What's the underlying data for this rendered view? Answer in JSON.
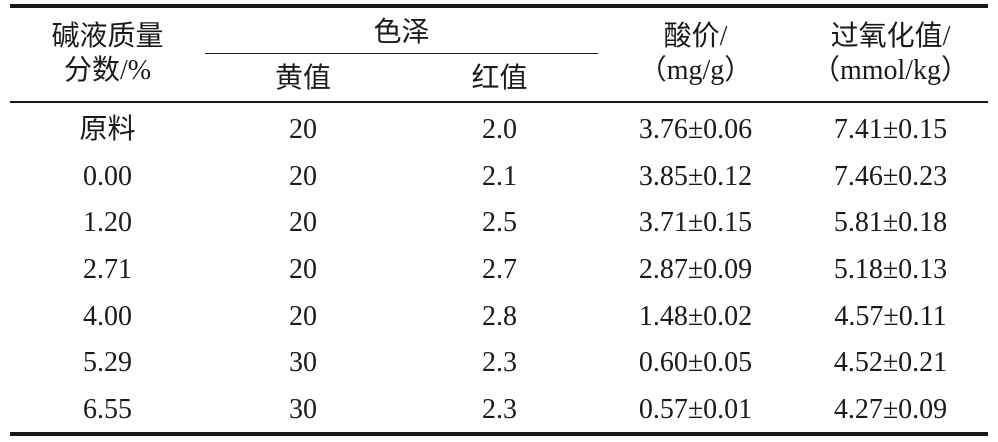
{
  "table": {
    "header": {
      "col1_line1": "碱液质量",
      "col1_line2": "分数/%",
      "group_color": "色泽",
      "sub_yellow": "黄值",
      "sub_red": "红值",
      "acid_line1": "酸价/",
      "acid_line2": "（mg/g）",
      "peroxide_line1": "过氧化值/",
      "peroxide_line2": "（mmol/kg）"
    },
    "rows": [
      {
        "conc": "原料",
        "yellow": "20",
        "red": "2.0",
        "acid": "3.76±0.06",
        "peroxide": "7.41±0.15"
      },
      {
        "conc": "0.00",
        "yellow": "20",
        "red": "2.1",
        "acid": "3.85±0.12",
        "peroxide": "7.46±0.23"
      },
      {
        "conc": "1.20",
        "yellow": "20",
        "red": "2.5",
        "acid": "3.71±0.15",
        "peroxide": "5.81±0.18"
      },
      {
        "conc": "2.71",
        "yellow": "20",
        "red": "2.7",
        "acid": "2.87±0.09",
        "peroxide": "5.18±0.13"
      },
      {
        "conc": "4.00",
        "yellow": "20",
        "red": "2.8",
        "acid": "1.48±0.02",
        "peroxide": "4.57±0.11"
      },
      {
        "conc": "5.29",
        "yellow": "30",
        "red": "2.3",
        "acid": "0.60±0.05",
        "peroxide": "4.52±0.21"
      },
      {
        "conc": "6.55",
        "yellow": "30",
        "red": "2.3",
        "acid": "0.57±0.01",
        "peroxide": "4.27±0.09"
      }
    ]
  }
}
